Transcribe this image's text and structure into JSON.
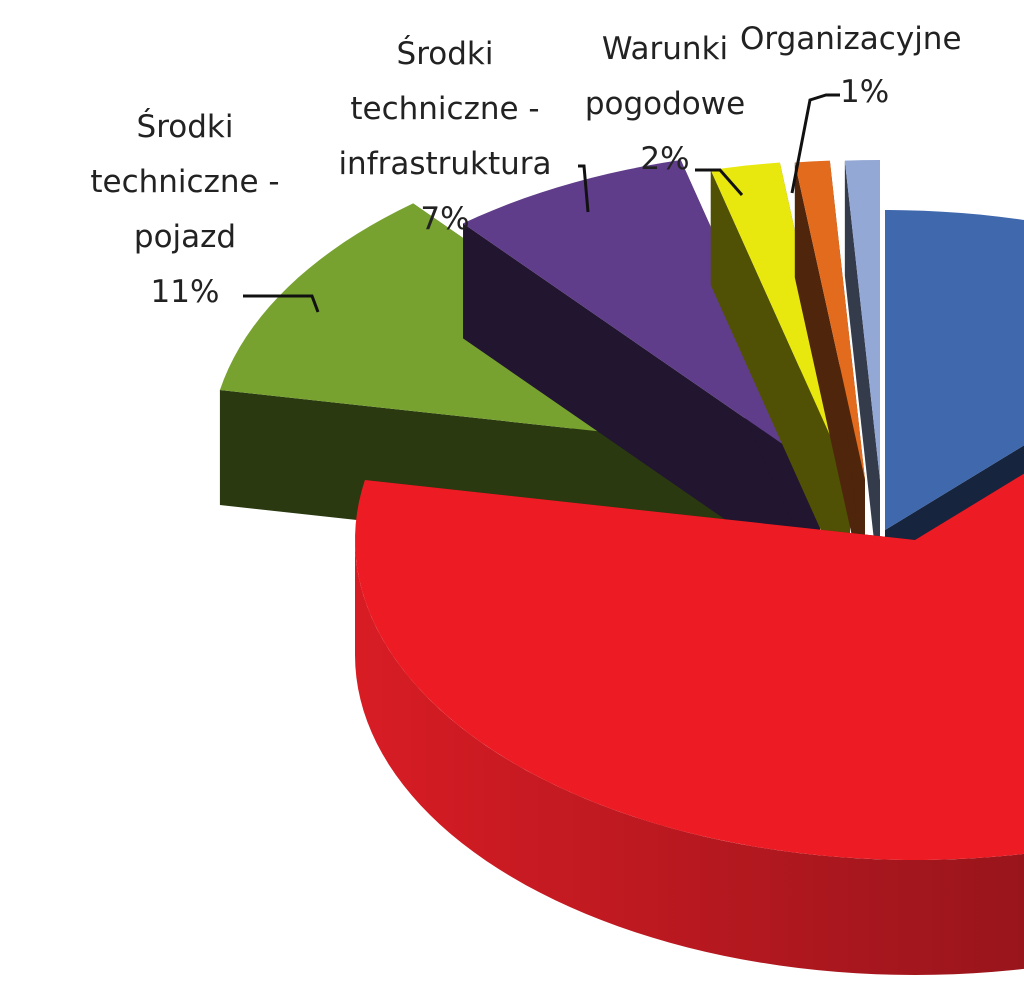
{
  "chart_data": {
    "type": "pie",
    "categories": [
      null,
      null,
      "Środki techniczne - pojazd",
      "Środki techniczne - infrastruktura",
      "Warunki pogodowe",
      "Organizacyjne",
      null
    ],
    "values": [
      12,
      66,
      11,
      7,
      2,
      1,
      1
    ],
    "value_labels": [
      null,
      null,
      "11%",
      "7%",
      "2%",
      "1%",
      null
    ],
    "colors": [
      "#3f68ad",
      "#ed1c24",
      "#77a22f",
      "#5f3d8a",
      "#e8e80f",
      "#e26b1e",
      "#94a8d6"
    ]
  }
}
